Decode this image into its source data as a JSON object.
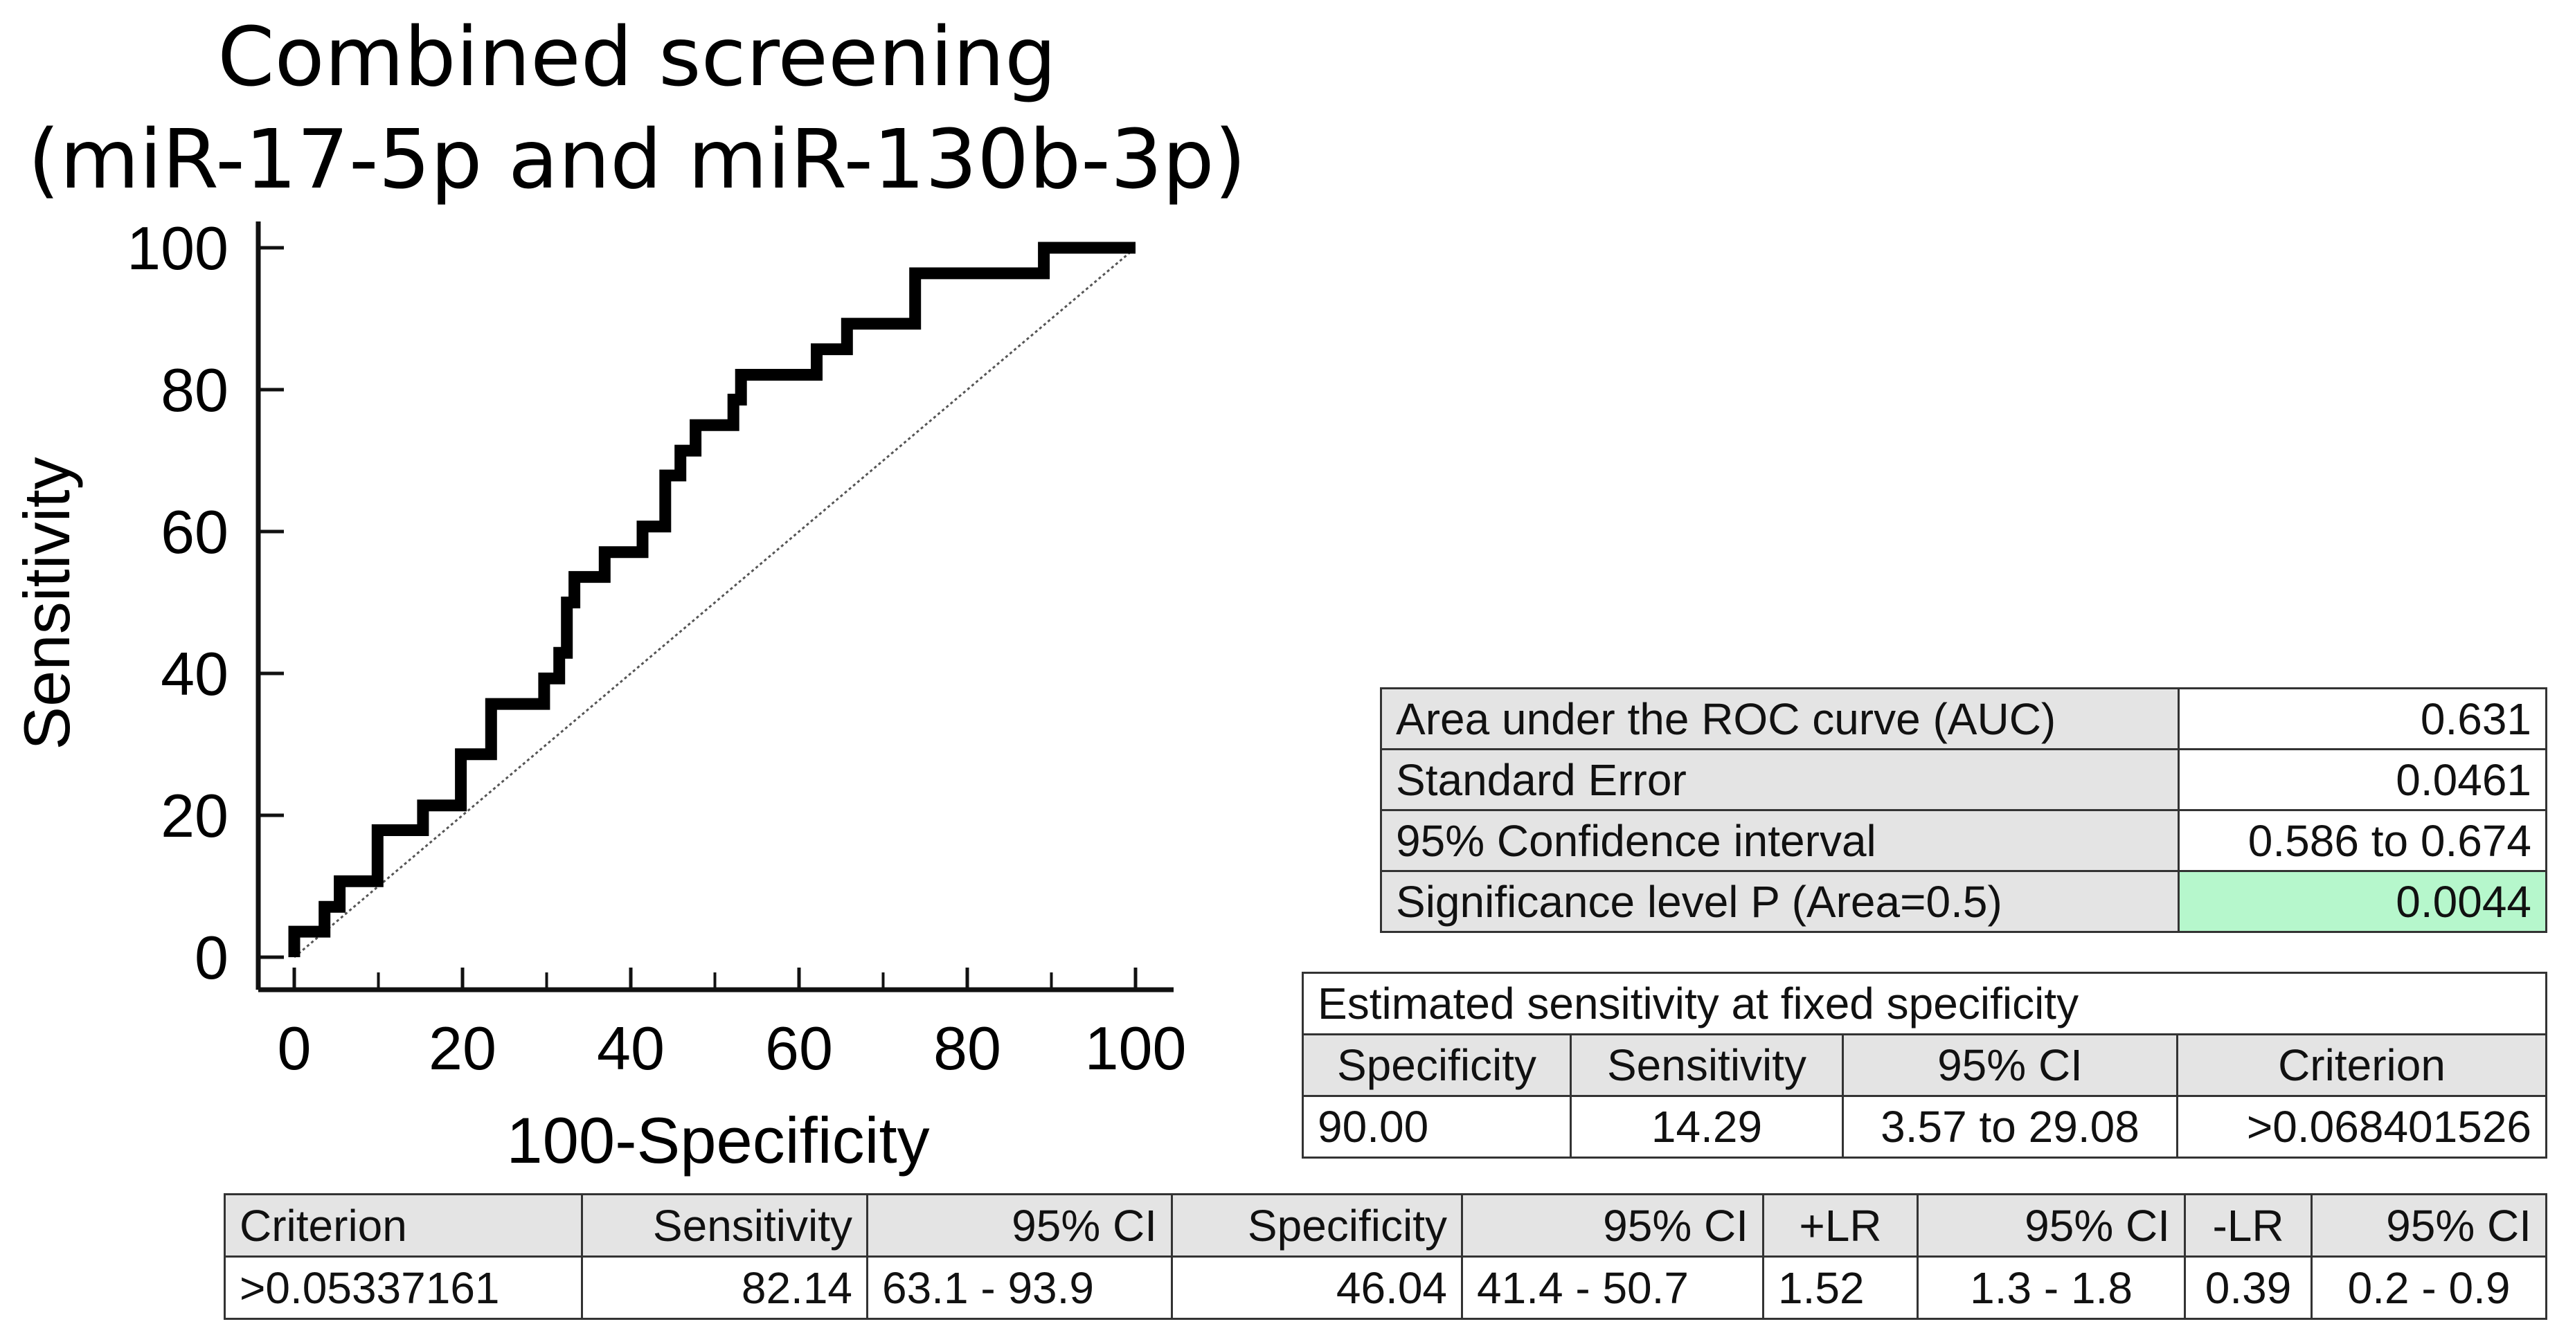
{
  "chart_data": {
    "type": "line",
    "title_lines": [
      "Combined screening",
      "(miR-17-5p and miR-130b-3p)"
    ],
    "xlabel": "100-Specificity",
    "ylabel": "Sensitivity",
    "xlim": [
      0,
      100
    ],
    "ylim": [
      0,
      100
    ],
    "xticks": [
      0,
      20,
      40,
      60,
      80,
      100
    ],
    "yticks": [
      0,
      20,
      40,
      60,
      80,
      100
    ],
    "series": [
      {
        "name": "ROC curve",
        "style": "step",
        "color": "#000000",
        "x": [
          0,
          0,
          1.8,
          3.6,
          3.6,
          5.4,
          5.4,
          9.9,
          9.9,
          15.3,
          15.3,
          19.8,
          19.8,
          23.4,
          23.4,
          29.7,
          29.7,
          31.5,
          31.5,
          32.4,
          32.4,
          33.3,
          33.3,
          36.9,
          36.9,
          41.4,
          41.4,
          44.1,
          44.1,
          45.9,
          45.9,
          47.7,
          47.7,
          52.2,
          52.2,
          53.1,
          53.1,
          62.1,
          62.1,
          65.7,
          65.7,
          73.8,
          73.8,
          89.1,
          89.1,
          100
        ],
        "y": [
          0,
          3.6,
          3.6,
          3.6,
          7.1,
          7.1,
          10.7,
          10.7,
          17.9,
          17.9,
          21.4,
          21.4,
          28.6,
          28.6,
          35.7,
          35.7,
          39.3,
          39.3,
          42.9,
          42.9,
          50,
          50,
          53.6,
          53.6,
          57.1,
          57.1,
          60.7,
          60.7,
          67.9,
          67.9,
          71.4,
          71.4,
          75,
          75,
          78.6,
          78.6,
          82.1,
          82.1,
          85.7,
          85.7,
          89.3,
          89.3,
          96.4,
          96.4,
          100,
          100
        ]
      },
      {
        "name": "Reference line",
        "style": "dotted",
        "color": "#555555",
        "x": [
          0,
          100
        ],
        "y": [
          0,
          100
        ]
      }
    ]
  },
  "auc_table": {
    "rows": [
      {
        "label": "Area under the ROC curve (AUC)",
        "value": "0.631"
      },
      {
        "label": "Standard Error",
        "value": "0.0461"
      },
      {
        "label": "95% Confidence interval",
        "value": "0.586 to 0.674"
      },
      {
        "label": "Significance level P (Area=0.5)",
        "value": "0.0044"
      }
    ],
    "highlight_color": "#b6f7cc"
  },
  "fixed_spec_table": {
    "title": "Estimated sensitivity at fixed specificity",
    "headers": [
      "Specificity",
      "Sensitivity",
      "95% CI",
      "Criterion"
    ],
    "row": [
      "90.00",
      "14.29",
      "3.57 to 29.08",
      ">0.068401526"
    ]
  },
  "criterion_table": {
    "headers": [
      "Criterion",
      "Sensitivity",
      "95% CI",
      "Specificity",
      "95% CI",
      "+LR",
      "95% CI",
      "-LR",
      "95% CI"
    ],
    "row": [
      ">0.05337161",
      "82.14",
      "63.1 - 93.9",
      "46.04",
      "41.4 - 50.7",
      "1.52",
      "1.3 - 1.8",
      "0.39",
      "0.2 - 0.9"
    ]
  }
}
